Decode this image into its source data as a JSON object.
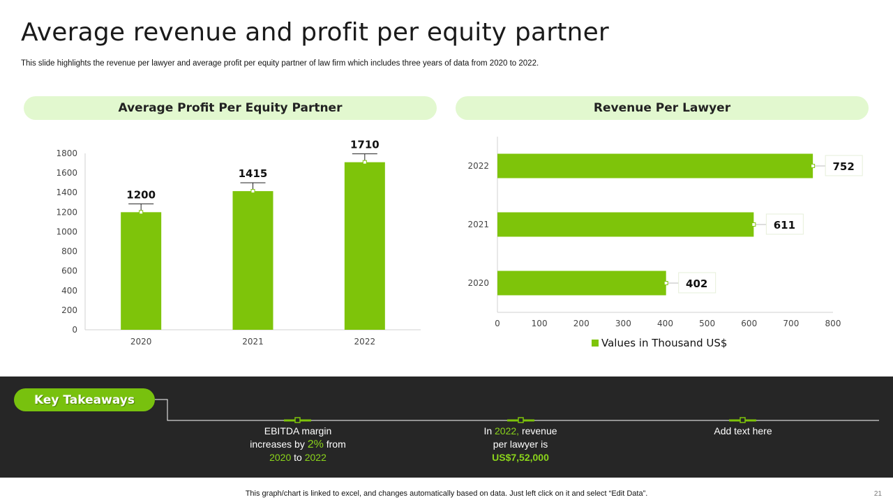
{
  "title": "Average revenue and profit per equity partner",
  "subtitle": "This slide highlights the revenue per lawyer and average profit per equity partner of law firm which includes three years of data from 2020 to 2022.",
  "left_header": "Average Profit Per Equity Partner",
  "right_header": "Revenue Per Lawyer",
  "chart_data": [
    {
      "type": "bar",
      "title": "Average Profit Per Equity Partner",
      "categories": [
        "2020",
        "2021",
        "2022"
      ],
      "values": [
        1200,
        1415,
        1710
      ],
      "ylim": [
        0,
        1800
      ],
      "yticks": [
        0,
        200,
        400,
        600,
        800,
        1000,
        1200,
        1400,
        1600,
        1800
      ],
      "color": "#7ec40a",
      "grid": false
    },
    {
      "type": "bar",
      "orientation": "horizontal",
      "title": "Revenue Per Lawyer",
      "categories": [
        "2022",
        "2021",
        "2020"
      ],
      "values": [
        752,
        611,
        402
      ],
      "xlim": [
        0,
        800
      ],
      "xticks": [
        0,
        100,
        200,
        300,
        400,
        500,
        600,
        700,
        800
      ],
      "series_name": "Values in Thousand US$",
      "legend": "bottom",
      "color": "#7ec40a",
      "grid": false
    }
  ],
  "key_takeaways": {
    "label": "Key Takeaways",
    "items": [
      {
        "line1": "EBITDA margin",
        "line2_a": "increases by ",
        "line2_hl": "2%",
        "line2_b": " from",
        "line3_a": "2020",
        "line3_mid": " to ",
        "line3_b": "2022"
      },
      {
        "line1_a": "In ",
        "line1_hl": "2022,",
        "line1_b": " revenue",
        "line2": "per lawyer is",
        "line3": "US$7,52,000"
      },
      {
        "line1": "Add text here"
      }
    ]
  },
  "footer": "This graph/chart is linked to excel,  and changes automatically based on data. Just left click on it and select “Edit Data”.",
  "page_number": "21",
  "colors": {
    "accent": "#7ec40a",
    "pill_bg": "#e2f8cf",
    "band_bg": "#262626",
    "highlight": "#8bd41b"
  }
}
